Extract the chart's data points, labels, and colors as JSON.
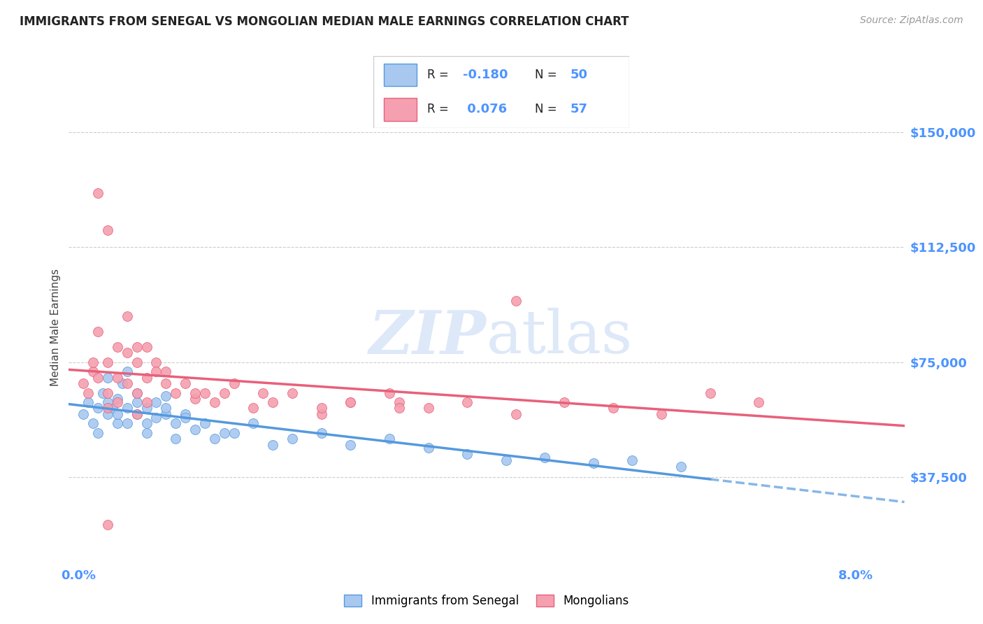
{
  "title": "IMMIGRANTS FROM SENEGAL VS MONGOLIAN MEDIAN MALE EARNINGS CORRELATION CHART",
  "source": "Source: ZipAtlas.com",
  "ylabel": "Median Male Earnings",
  "ytick_labels": [
    "$37,500",
    "$75,000",
    "$112,500",
    "$150,000"
  ],
  "ytick_values": [
    37500,
    75000,
    112500,
    150000
  ],
  "ymin": 10000,
  "ymax": 162500,
  "xmin": -0.001,
  "xmax": 0.085,
  "color_senegal": "#a8c8f0",
  "color_mongolian": "#f4a0b0",
  "color_trendline_senegal": "#5599dd",
  "color_trendline_mongolian": "#e8607a",
  "color_axis_labels": "#4d94ff",
  "color_title": "#222222",
  "color_source": "#999999",
  "watermark_color": "#dde8f8",
  "senegal_x": [
    0.0005,
    0.001,
    0.0015,
    0.002,
    0.002,
    0.0025,
    0.003,
    0.003,
    0.0035,
    0.004,
    0.004,
    0.0045,
    0.005,
    0.005,
    0.005,
    0.006,
    0.006,
    0.007,
    0.007,
    0.008,
    0.008,
    0.009,
    0.009,
    0.01,
    0.01,
    0.011,
    0.012,
    0.013,
    0.014,
    0.016,
    0.018,
    0.02,
    0.022,
    0.025,
    0.028,
    0.032,
    0.036,
    0.04,
    0.044,
    0.048,
    0.053,
    0.057,
    0.062,
    0.003,
    0.004,
    0.006,
    0.007,
    0.009,
    0.011,
    0.015
  ],
  "senegal_y": [
    58000,
    62000,
    55000,
    60000,
    52000,
    65000,
    70000,
    58000,
    60000,
    63000,
    55000,
    68000,
    60000,
    55000,
    72000,
    65000,
    58000,
    60000,
    52000,
    62000,
    57000,
    58000,
    64000,
    55000,
    50000,
    58000,
    53000,
    55000,
    50000,
    52000,
    55000,
    48000,
    50000,
    52000,
    48000,
    50000,
    47000,
    45000,
    43000,
    44000,
    42000,
    43000,
    41000,
    62000,
    58000,
    62000,
    55000,
    60000,
    57000,
    52000
  ],
  "mongolian_x": [
    0.0005,
    0.001,
    0.0015,
    0.002,
    0.002,
    0.003,
    0.003,
    0.003,
    0.004,
    0.004,
    0.005,
    0.005,
    0.005,
    0.006,
    0.006,
    0.007,
    0.007,
    0.008,
    0.009,
    0.009,
    0.01,
    0.011,
    0.012,
    0.013,
    0.014,
    0.015,
    0.016,
    0.018,
    0.02,
    0.022,
    0.025,
    0.028,
    0.032,
    0.036,
    0.04,
    0.045,
    0.05,
    0.055,
    0.06,
    0.065,
    0.07,
    0.002,
    0.004,
    0.006,
    0.008,
    0.007,
    0.003,
    0.019,
    0.033,
    0.025,
    0.045,
    0.0015,
    0.003,
    0.028,
    0.012,
    0.033,
    0.006
  ],
  "mongolian_y": [
    68000,
    65000,
    72000,
    70000,
    85000,
    75000,
    65000,
    60000,
    70000,
    62000,
    90000,
    78000,
    68000,
    80000,
    65000,
    70000,
    62000,
    75000,
    68000,
    72000,
    65000,
    68000,
    63000,
    65000,
    62000,
    65000,
    68000,
    60000,
    62000,
    65000,
    58000,
    62000,
    65000,
    60000,
    62000,
    58000,
    62000,
    60000,
    58000,
    65000,
    62000,
    130000,
    80000,
    75000,
    72000,
    80000,
    118000,
    65000,
    62000,
    60000,
    95000,
    75000,
    22000,
    62000,
    65000,
    60000,
    58000
  ]
}
